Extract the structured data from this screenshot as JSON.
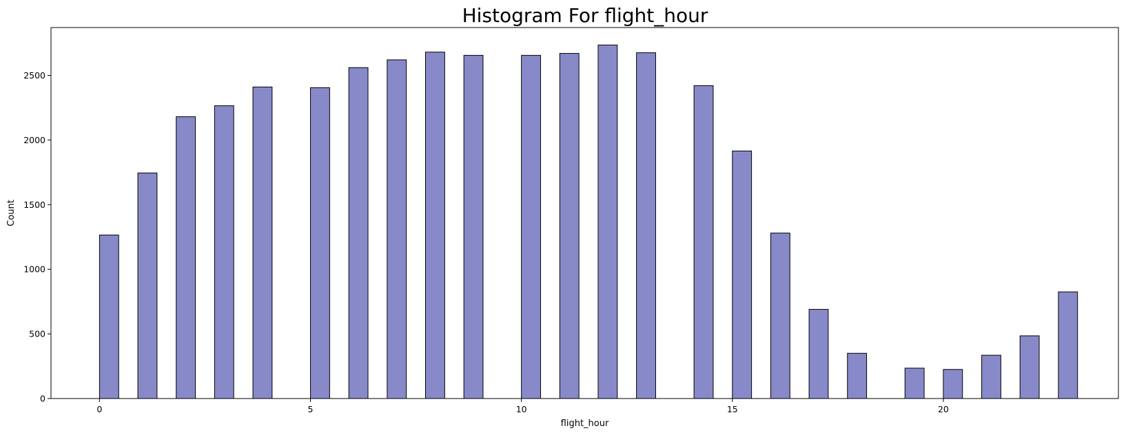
{
  "chart_data": {
    "type": "bar",
    "title": "Histogram For flight_hour",
    "xlabel": "flight_hour",
    "ylabel": "Count",
    "xlim": [
      -1.15,
      24.15
    ],
    "ylim": [
      0,
      2870
    ],
    "xticks": [
      0,
      5,
      10,
      15,
      20
    ],
    "yticks": [
      0,
      500,
      1000,
      1500,
      2000,
      2500
    ],
    "grid": false,
    "legend": "none",
    "bar_color": "#8789c8",
    "edge_color": "#000000",
    "bin_width": 0.4545,
    "bins": [
      {
        "x": 0,
        "count": 1265
      },
      {
        "x": 0.909,
        "count": 1745
      },
      {
        "x": 1.818,
        "count": 2180
      },
      {
        "x": 2.727,
        "count": 2265
      },
      {
        "x": 3.636,
        "count": 2410
      },
      {
        "x": 5,
        "count": 2405
      },
      {
        "x": 5.909,
        "count": 2560
      },
      {
        "x": 6.818,
        "count": 2620
      },
      {
        "x": 7.727,
        "count": 2680
      },
      {
        "x": 8.636,
        "count": 2655
      },
      {
        "x": 10,
        "count": 2655
      },
      {
        "x": 10.909,
        "count": 2670
      },
      {
        "x": 11.818,
        "count": 2735
      },
      {
        "x": 12.727,
        "count": 2675
      },
      {
        "x": 14.091,
        "count": 2420
      },
      {
        "x": 15,
        "count": 1915
      },
      {
        "x": 15.909,
        "count": 1280
      },
      {
        "x": 16.818,
        "count": 690
      },
      {
        "x": 17.727,
        "count": 350
      },
      {
        "x": 19.091,
        "count": 235
      },
      {
        "x": 20,
        "count": 225
      },
      {
        "x": 20.909,
        "count": 335
      },
      {
        "x": 21.818,
        "count": 485
      },
      {
        "x": 22.727,
        "count": 825
      }
    ]
  }
}
